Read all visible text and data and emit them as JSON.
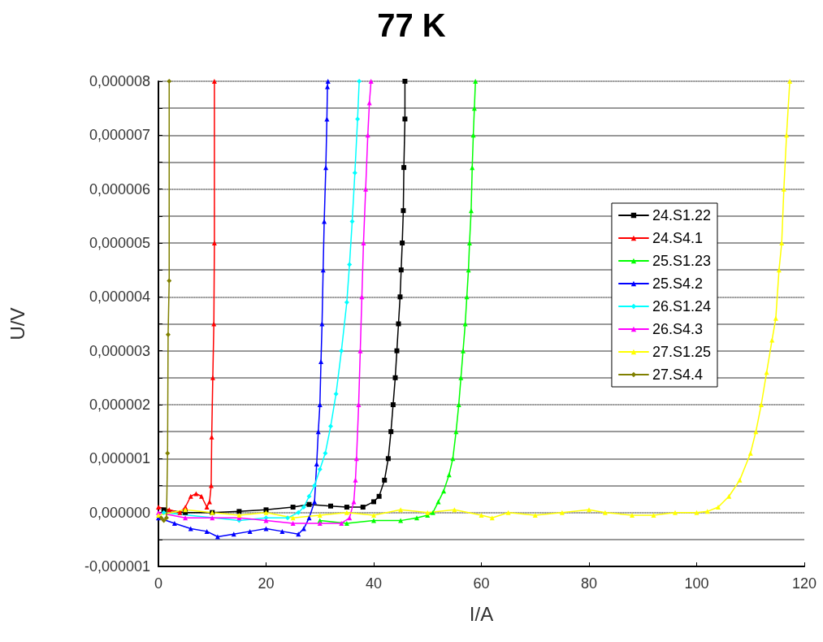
{
  "chart_data": {
    "type": "line",
    "title": "77 K",
    "xlabel": "I/A",
    "ylabel": "U/V",
    "xlim": [
      0,
      120
    ],
    "xticks": [
      0,
      20,
      40,
      60,
      80,
      100,
      120
    ],
    "ylim": [
      -1e-06,
      8e-06
    ],
    "yticks": [
      {
        "value": -1e-06,
        "label": "-0,000001"
      },
      {
        "value": -5e-07,
        "label": null
      },
      {
        "value": 0,
        "label": "0,000000"
      },
      {
        "value": 5e-07,
        "label": null
      },
      {
        "value": 1e-06,
        "label": "0,000001"
      },
      {
        "value": 1.5e-06,
        "label": null
      },
      {
        "value": 2e-06,
        "label": "0,000002"
      },
      {
        "value": 2.5e-06,
        "label": null
      },
      {
        "value": 3e-06,
        "label": "0,000003"
      },
      {
        "value": 3.5e-06,
        "label": null
      },
      {
        "value": 4e-06,
        "label": "0,000004"
      },
      {
        "value": 4.5e-06,
        "label": null
      },
      {
        "value": 5e-06,
        "label": "0,000005"
      },
      {
        "value": 5.5e-06,
        "label": null
      },
      {
        "value": 6e-06,
        "label": "0,000006"
      },
      {
        "value": 6.5e-06,
        "label": null
      },
      {
        "value": 7e-06,
        "label": "0,000007"
      },
      {
        "value": 7.5e-06,
        "label": null
      },
      {
        "value": 8e-06,
        "label": "0,000008"
      }
    ],
    "grid": "y",
    "legend": "right",
    "line_style": "solid",
    "series": [
      {
        "name": "24.S1.22",
        "color": "#000000",
        "marker": "square",
        "x": [
          1,
          5,
          10,
          15,
          20,
          25,
          28,
          32,
          35,
          38,
          40,
          41,
          42,
          42.7,
          43.2,
          43.6,
          44,
          44.3,
          44.6,
          44.9,
          45.1,
          45.3,
          45.5,
          45.6,
          45.8,
          45.8
        ],
        "values": [
          5e-08,
          0,
          0,
          2e-08,
          5e-08,
          1e-07,
          1.5e-07,
          1.2e-07,
          1e-07,
          1e-07,
          2e-07,
          3e-07,
          6e-07,
          1e-06,
          1.5e-06,
          2e-06,
          2.5e-06,
          3e-06,
          3.5e-06,
          4e-06,
          4.5e-06,
          5e-06,
          5.6e-06,
          6.4e-06,
          7.3e-06,
          8e-06
        ]
      },
      {
        "name": "24.S4.1",
        "color": "#ff0000",
        "marker": "triangle",
        "x": [
          0,
          2,
          4,
          5,
          6,
          7,
          8,
          9,
          9.5,
          9.8,
          9.9,
          10.1,
          10.3,
          10.4,
          10.4
        ],
        "values": [
          1e-07,
          5e-08,
          0,
          1e-07,
          3e-07,
          3.5e-07,
          3e-07,
          1e-07,
          2e-07,
          5e-07,
          1.4e-06,
          2.5e-06,
          3.5e-06,
          5e-06,
          8e-06
        ]
      },
      {
        "name": "25.S1.23",
        "color": "#00ff00",
        "marker": "triangle",
        "x": [
          30,
          35,
          40,
          45,
          48,
          50,
          51,
          52,
          53,
          54,
          54.7,
          55.3,
          55.8,
          56.2,
          56.6,
          57,
          57.3,
          57.6,
          57.8,
          58.1,
          58.3,
          58.5,
          58.7,
          58.9
        ],
        "values": [
          -1.5e-07,
          -2e-07,
          -1.5e-07,
          -1.5e-07,
          -1e-07,
          -5e-08,
          0,
          2e-07,
          4e-07,
          7e-07,
          1e-06,
          1.5e-06,
          2e-06,
          2.5e-06,
          3e-06,
          3.5e-06,
          4e-06,
          4.5e-06,
          5e-06,
          5.6e-06,
          6.4e-06,
          7e-06,
          7.5e-06,
          8e-06
        ]
      },
      {
        "name": "25.S4.2",
        "color": "#0000ff",
        "marker": "triangle",
        "x": [
          0,
          3,
          6,
          9,
          11,
          14,
          17,
          20,
          23,
          26,
          27,
          28,
          29,
          29.4,
          29.7,
          30,
          30.2,
          30.4,
          30.6,
          30.8,
          31.1,
          31.3,
          31.4,
          31.5
        ],
        "values": [
          -1e-07,
          -2e-07,
          -3e-07,
          -3.5e-07,
          -4.5e-07,
          -4e-07,
          -3.5e-07,
          -3e-07,
          -3.5e-07,
          -4e-07,
          -3e-07,
          -1e-07,
          2e-07,
          9e-07,
          1.5e-06,
          2e-06,
          2.8e-06,
          3.5e-06,
          4.5e-06,
          5.4e-06,
          6.4e-06,
          7.3e-06,
          7.9e-06,
          8e-06
        ]
      },
      {
        "name": "26.S1.24",
        "color": "#00ffff",
        "marker": "diamond",
        "x": [
          1,
          15,
          20,
          24,
          26,
          27,
          28,
          29,
          30,
          31,
          32,
          33,
          34,
          35,
          35.5,
          36,
          36.5,
          37,
          37.3
        ],
        "values": [
          0,
          -1.5e-07,
          -1e-07,
          -1e-07,
          0,
          1e-07,
          3e-07,
          5e-07,
          8e-07,
          1.1e-06,
          1.6e-06,
          2.2e-06,
          3e-06,
          3.9e-06,
          4.6e-06,
          5.4e-06,
          6.3e-06,
          7.3e-06,
          8e-06
        ]
      },
      {
        "name": "26.S4.3",
        "color": "#ff00ff",
        "marker": "triangle",
        "x": [
          0,
          5,
          10,
          15,
          20,
          25,
          30,
          34,
          35.5,
          36.3,
          36.6,
          36.8,
          37.2,
          37.5,
          37.8,
          38.1,
          38.5,
          38.9,
          39.2,
          39.5
        ],
        "values": [
          0,
          -1e-07,
          -1e-07,
          -1e-07,
          -1.5e-07,
          -2e-07,
          -2e-07,
          -2e-07,
          -1e-07,
          2e-07,
          6e-07,
          1e-06,
          2e-06,
          3e-06,
          4e-06,
          5e-06,
          6e-06,
          7e-06,
          7.6e-06,
          8e-06
        ]
      },
      {
        "name": "27.S1.25",
        "color": "#ffff00",
        "marker": "triangle",
        "x": [
          0,
          5,
          10,
          15,
          20,
          25,
          30,
          35,
          40,
          45,
          50,
          55,
          60,
          62,
          65,
          70,
          75,
          80,
          83,
          88,
          92,
          96,
          100,
          102,
          104,
          106,
          108,
          110,
          111,
          112,
          113,
          114,
          114.7,
          115.3,
          115.8,
          116.2,
          116.7,
          117.3
        ],
        "values": [
          -5e-08,
          5e-08,
          0,
          -5e-08,
          0,
          -1e-07,
          -5e-08,
          0,
          -5e-08,
          5e-08,
          0,
          5e-08,
          -5e-08,
          -1e-07,
          0,
          -5e-08,
          0,
          5e-08,
          0,
          -5e-08,
          -5e-08,
          0,
          0,
          2e-08,
          1e-07,
          3e-07,
          6e-07,
          1.1e-06,
          1.5e-06,
          2e-06,
          2.6e-06,
          3.2e-06,
          3.6e-06,
          4.5e-06,
          5e-06,
          6e-06,
          7e-06,
          8e-06
        ]
      },
      {
        "name": "27.S4.4",
        "color": "#808000",
        "marker": "diamond",
        "x": [
          0.5,
          1,
          1.5,
          1.7,
          1.8,
          2,
          2
        ],
        "values": [
          -1e-07,
          -1.5e-07,
          -1e-07,
          1.1e-06,
          3.3e-06,
          4.3e-06,
          8e-06
        ]
      }
    ]
  }
}
